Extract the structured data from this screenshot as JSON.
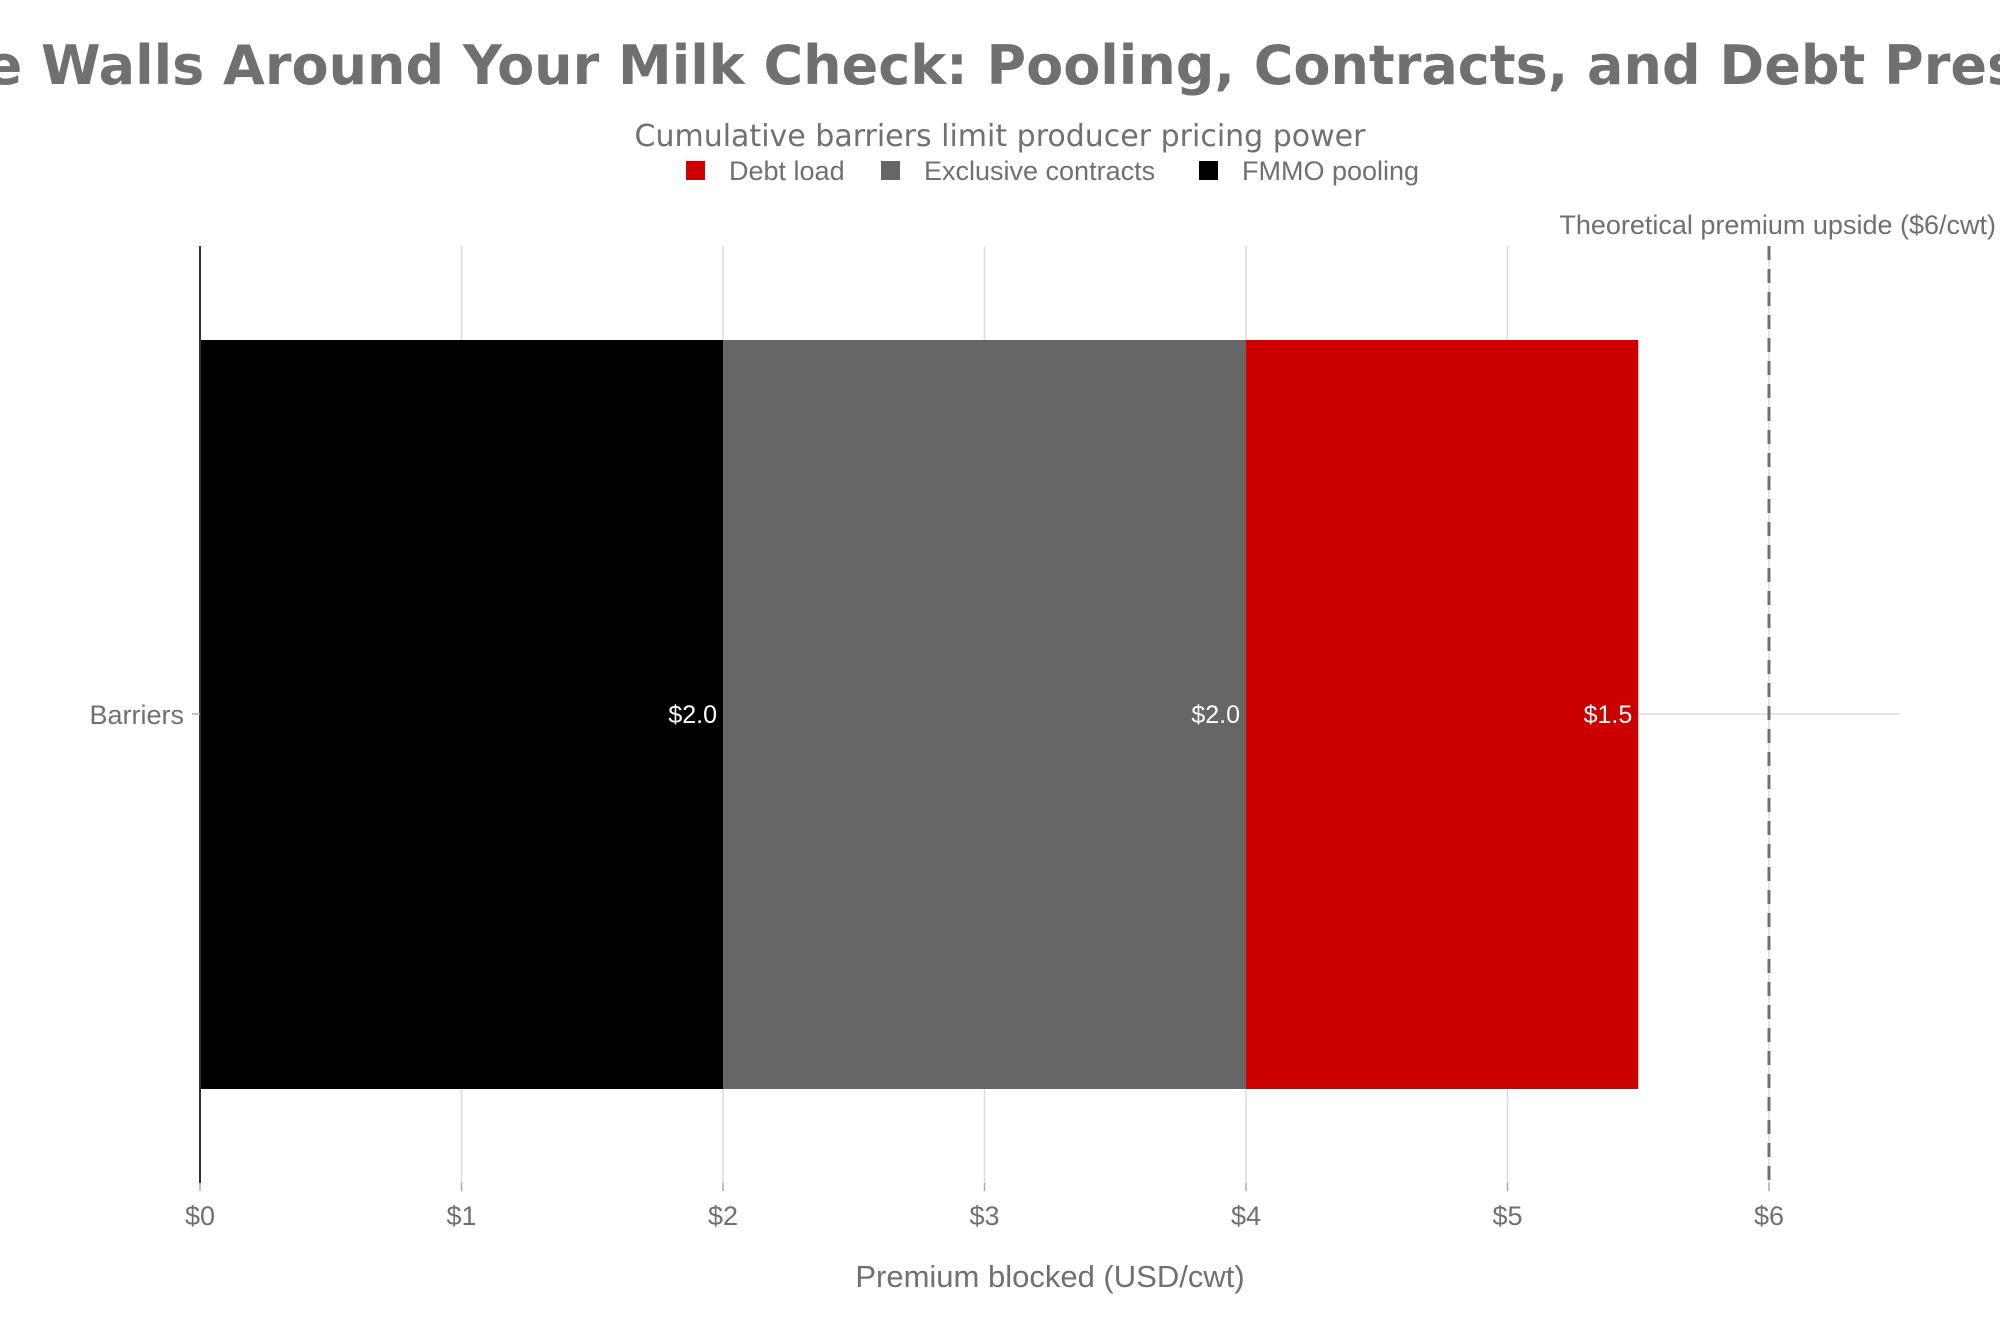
{
  "chart_data": {
    "type": "bar",
    "orientation": "horizontal",
    "stacked": true,
    "title": "Three Walls Around Your Milk Check: Pooling, Contracts, and Debt Pressure",
    "subtitle": "Cumulative barriers limit producer pricing power",
    "xlabel": "Premium blocked (USD/cwt)",
    "ylabel": "",
    "categories": [
      "Barriers"
    ],
    "series": [
      {
        "name": "FMMO pooling",
        "values": [
          2.0
        ],
        "color": "#000000",
        "label": "$2.0"
      },
      {
        "name": "Exclusive contracts",
        "values": [
          2.0
        ],
        "color": "#666666",
        "label": "$2.0"
      },
      {
        "name": "Debt load",
        "values": [
          1.5
        ],
        "color": "#cc0000",
        "label": "$1.5"
      }
    ],
    "legend": {
      "placement": "top-center",
      "order": [
        "Debt load",
        "Exclusive contracts",
        "FMMO pooling"
      ]
    },
    "xlim": [
      0,
      6.5
    ],
    "xticks": [
      0,
      1,
      2,
      3,
      4,
      5,
      6
    ],
    "xtick_labels": [
      "$0",
      "$1",
      "$2",
      "$3",
      "$4",
      "$5",
      "$6"
    ],
    "grid": true,
    "reference_line": {
      "x": 6,
      "style": "dashed",
      "label": "Theoretical premium upside ($6/cwt)"
    }
  }
}
